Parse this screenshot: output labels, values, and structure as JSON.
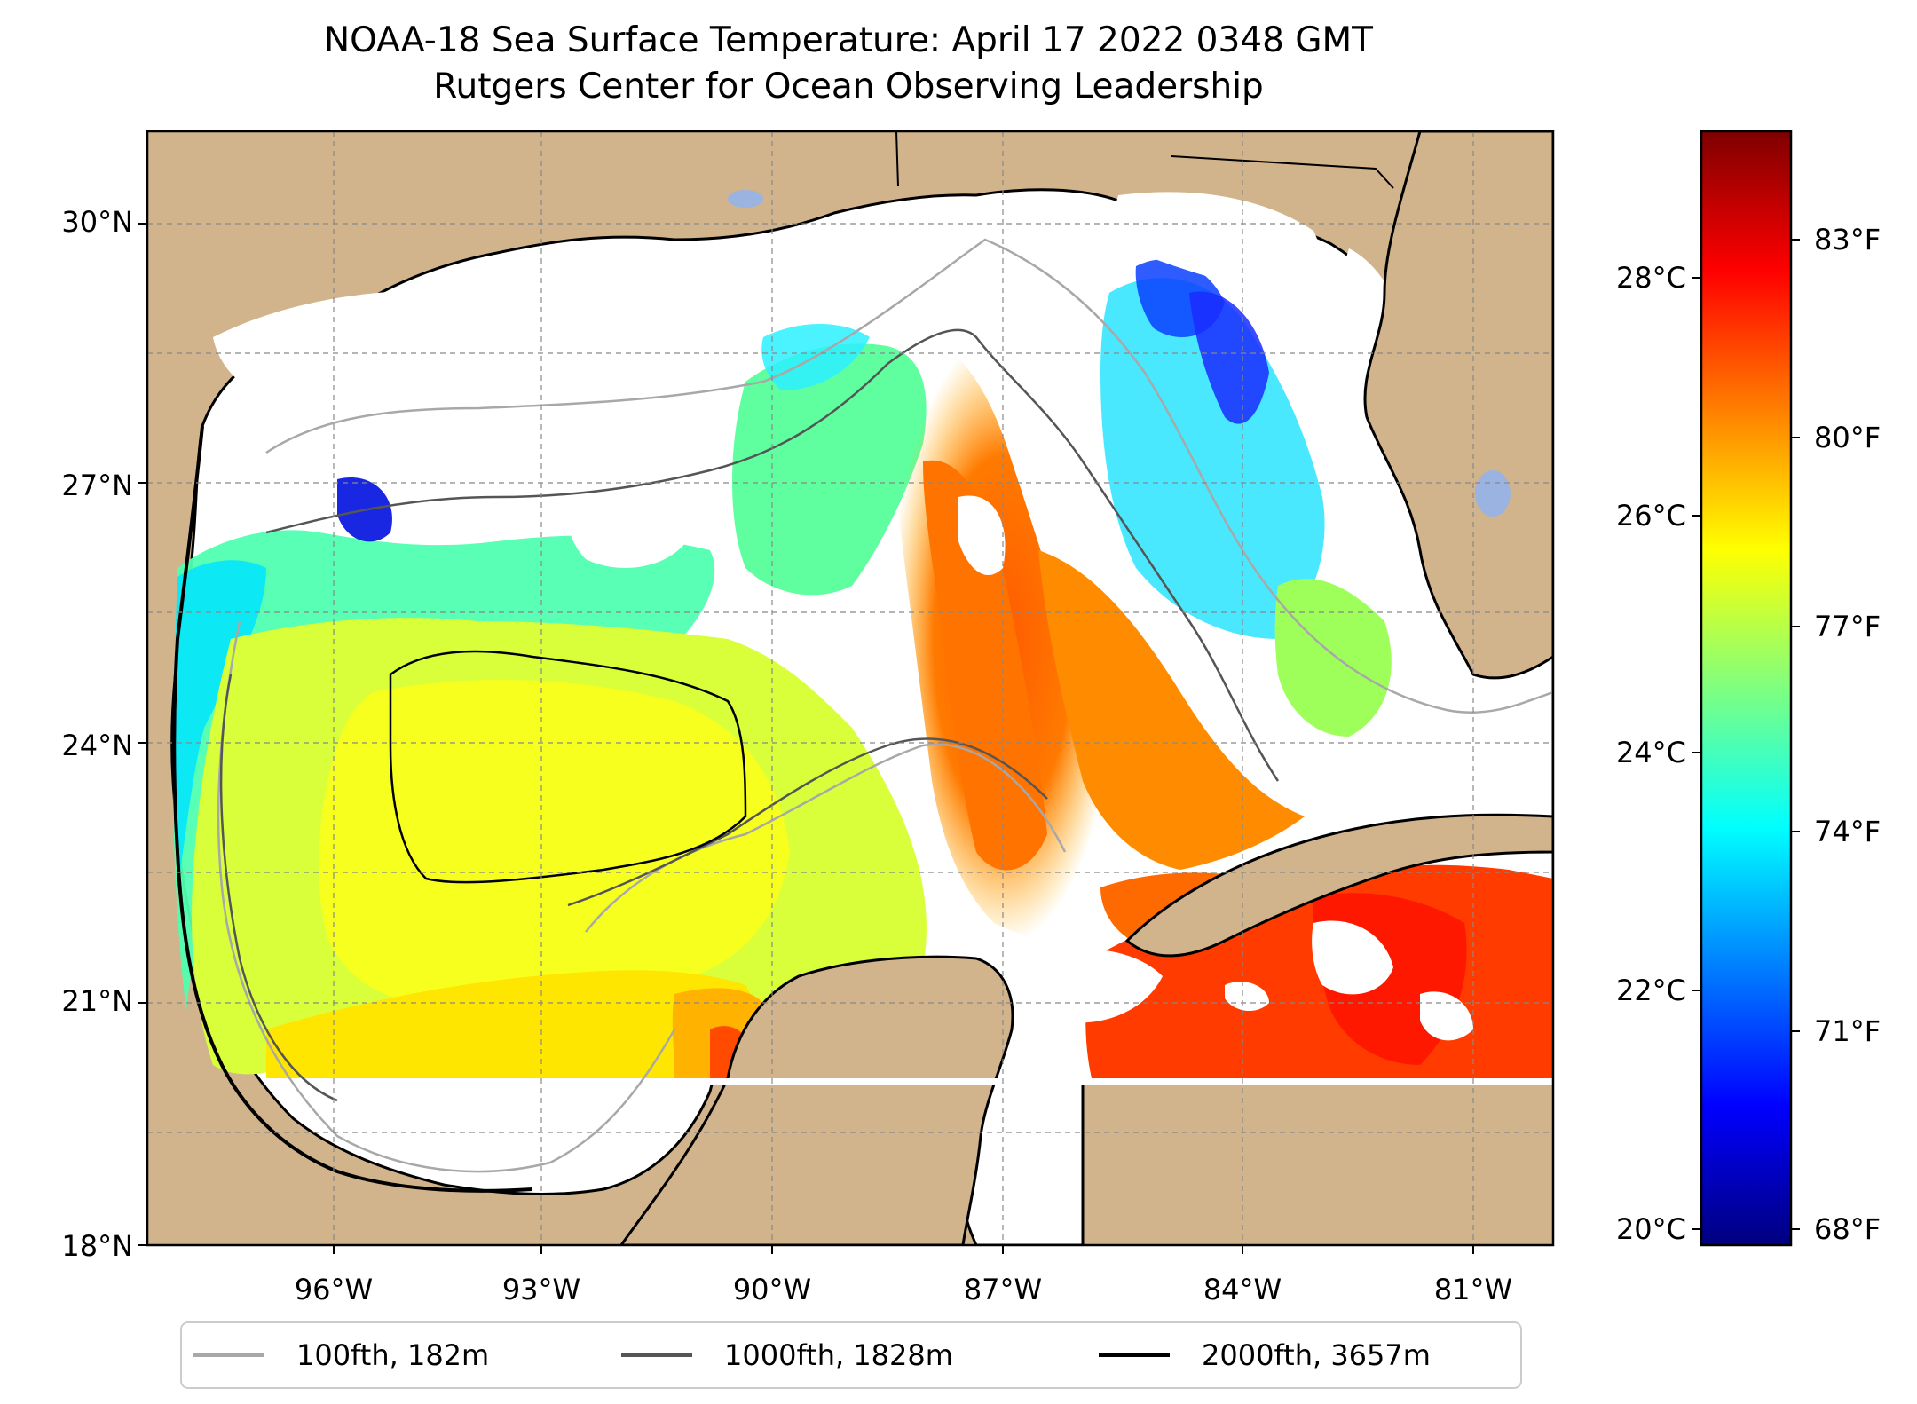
{
  "title": {
    "line1": "NOAA-18 Sea Surface Temperature: April 17 2022 0348 GMT",
    "line2": "Rutgers Center for Ocean Observing Leadership"
  },
  "axes": {
    "lat_labels": [
      "30°N",
      "27°N",
      "24°N",
      "21°N",
      "18°N"
    ],
    "lon_labels": [
      "96°W",
      "93°W",
      "90°W",
      "87°W",
      "84°W",
      "81°W"
    ]
  },
  "colorbar": {
    "celsius_ticks": [
      "28°C",
      "26°C",
      "24°C",
      "22°C",
      "20°C"
    ],
    "fahrenheit_ticks": [
      "83°F",
      "80°F",
      "77°F",
      "74°F",
      "71°F",
      "68°F"
    ],
    "colormap_stops": [
      "#00007f",
      "#0000ff",
      "#007fff",
      "#00ffff",
      "#7fff7f",
      "#ffff00",
      "#ff7f00",
      "#ff0000",
      "#7f0000"
    ]
  },
  "legend": {
    "items": [
      {
        "label": "100fth, 182m",
        "color": "#a8a8a8"
      },
      {
        "label": "1000fth, 1828m",
        "color": "#555555"
      },
      {
        "label": "2000fth, 3657m",
        "color": "#000000"
      }
    ]
  },
  "map_colors": {
    "land": "#d1b38c",
    "no_data": "#ffffff",
    "lakes": "#9bb3e0"
  }
}
